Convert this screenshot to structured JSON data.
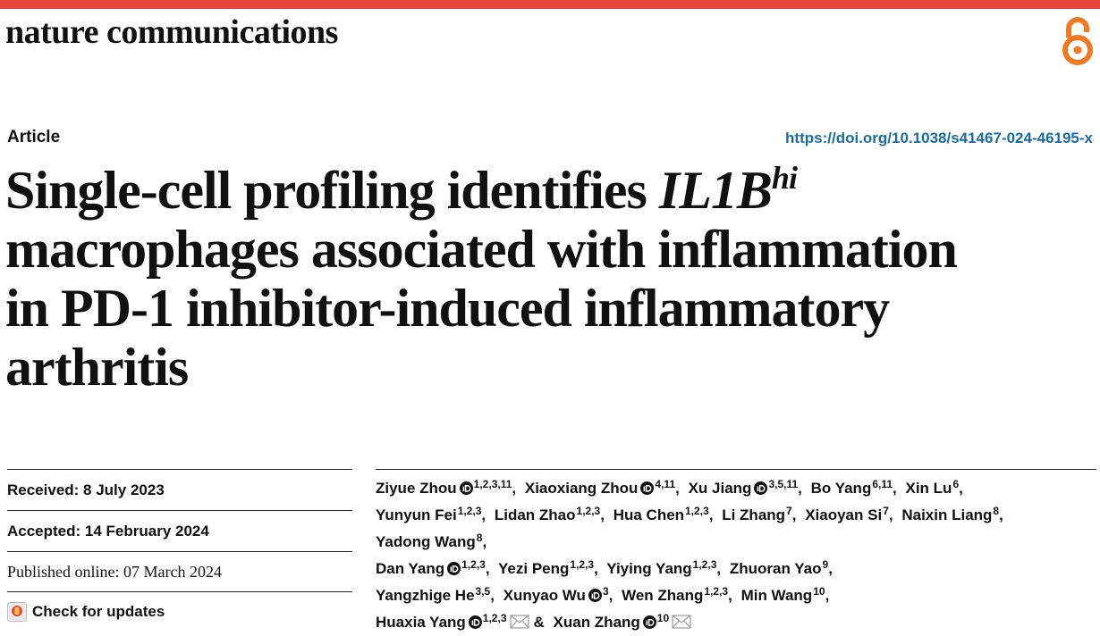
{
  "header": {
    "journal": "nature communications"
  },
  "article": {
    "type": "Article",
    "doi": "https://doi.org/10.1038/s41467-024-46195-x",
    "title": {
      "before": "Single-cell profiling identifies",
      "gene": "IL1B",
      "gene_superscript": "hi",
      "after_lines": [
        "macrophages associated with inflammation",
        "in PD-1 inhibitor-induced inflammatory",
        "arthritis"
      ]
    },
    "dates": {
      "received": "Received: 8 July 2023",
      "accepted": "Accepted: 14 February 2024",
      "published": "Published online: 07 March 2024"
    },
    "check_for_updates": "Check for updates",
    "authors_separator": ",",
    "authors_conjunction": "&",
    "authors": [
      {
        "name": "Ziyue Zhou",
        "orcid": true,
        "affiliations": "1,2,3,11"
      },
      {
        "name": "Xiaoxiang Zhou",
        "orcid": true,
        "affiliations": "4,11"
      },
      {
        "name": "Xu Jiang",
        "orcid": true,
        "affiliations": "3,5,11"
      },
      {
        "name": "Bo Yang",
        "affiliations": "6,11"
      },
      {
        "name": "Xin Lu",
        "affiliations": "6"
      },
      {
        "name": "Yunyun Fei",
        "affiliations": "1,2,3"
      },
      {
        "name": "Lidan Zhao",
        "affiliations": "1,2,3"
      },
      {
        "name": "Hua Chen",
        "affiliations": "1,2,3"
      },
      {
        "name": "Li Zhang",
        "affiliations": "7"
      },
      {
        "name": "Xiaoyan Si",
        "affiliations": "7"
      },
      {
        "name": "Naixin Liang",
        "affiliations": "8"
      },
      {
        "name": "Yadong Wang",
        "affiliations": "8"
      },
      {
        "name": "Dan Yang",
        "orcid": true,
        "affiliations": "1,2,3"
      },
      {
        "name": "Yezi Peng",
        "affiliations": "1,2,3"
      },
      {
        "name": "Yiying Yang",
        "affiliations": "1,2,3"
      },
      {
        "name": "Zhuoran Yao",
        "affiliations": "9"
      },
      {
        "name": "Yangzhige He",
        "affiliations": "3,5"
      },
      {
        "name": "Xunyao Wu",
        "orcid": true,
        "affiliations": "3"
      },
      {
        "name": "Wen Zhang",
        "affiliations": "1,2,3"
      },
      {
        "name": "Min Wang",
        "affiliations": "10"
      },
      {
        "name": "Huaxia Yang",
        "orcid": true,
        "affiliations": "1,2,3",
        "email": true
      },
      {
        "name": "Xuan Zhang",
        "orcid": true,
        "affiliations": "10",
        "email": true
      }
    ]
  }
}
